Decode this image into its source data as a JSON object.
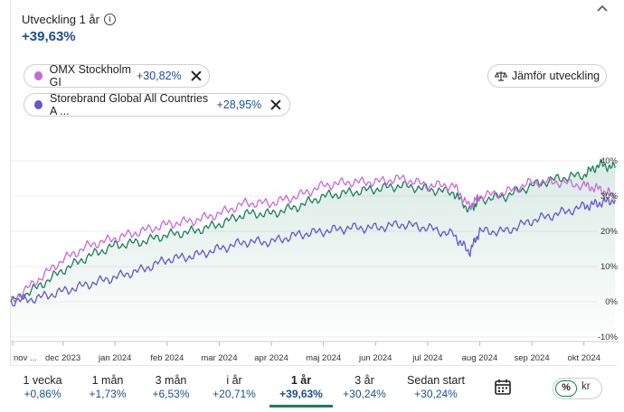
{
  "header": {
    "title": "Utveckling 1 år",
    "change": "+39,63%"
  },
  "chips": [
    {
      "name": "OMX Stockholm GI",
      "value": "+30,82%",
      "color": "#cc66dd"
    },
    {
      "name": "Storebrand Global All Countries A ...",
      "value": "+28,95%",
      "color": "#6655cc"
    }
  ],
  "compare_button": "Jämför utveckling",
  "chart_data": {
    "type": "line",
    "x_labels": [
      "nov ...",
      "dec 2023",
      "jan 2024",
      "feb 2024",
      "mar 2024",
      "apr 2024",
      "maj 2024",
      "jun 2024",
      "jul 2024",
      "aug 2024",
      "sep 2024",
      "okt 2024"
    ],
    "y_ticks": [
      "40%",
      "30%",
      "20%",
      "10%",
      "0%",
      "-10%"
    ],
    "ylim": [
      -10,
      40
    ],
    "grid": true,
    "series": [
      {
        "color": "#1a7f5a",
        "fill": true,
        "x": [
          0,
          0.5,
          1,
          1.5,
          2,
          2.5,
          3,
          3.5,
          4,
          4.5,
          5,
          5.5,
          6,
          6.5,
          7,
          7.5,
          8,
          8.5,
          8.8,
          9,
          9.5,
          10,
          10.5,
          11,
          11.3,
          11.6
        ],
        "y": [
          0,
          4,
          9,
          13,
          16,
          17,
          19,
          20,
          22,
          25,
          25,
          27,
          30,
          31,
          32,
          33,
          32,
          31,
          26,
          29,
          30,
          33,
          35,
          36,
          39,
          38
        ]
      },
      {
        "color": "#cc66dd",
        "fill": false,
        "x": [
          0,
          0.5,
          1,
          1.5,
          2,
          2.5,
          3,
          3.5,
          4,
          4.5,
          5,
          5.5,
          6,
          6.5,
          7,
          7.5,
          8,
          8.5,
          8.8,
          9,
          9.5,
          10,
          10.5,
          11,
          11.3,
          11.6
        ],
        "y": [
          0,
          6,
          12,
          16,
          18,
          20,
          22,
          23,
          25,
          28,
          28,
          30,
          33,
          34,
          34,
          35,
          33,
          33,
          27,
          30,
          31,
          34,
          34,
          33,
          32,
          30
        ]
      },
      {
        "color": "#6655cc",
        "fill": false,
        "x": [
          0,
          0.5,
          1,
          1.5,
          2,
          2.5,
          3,
          3.5,
          4,
          4.5,
          5,
          5.5,
          6,
          6.5,
          7,
          7.5,
          8,
          8.5,
          8.8,
          9,
          9.5,
          10,
          10.5,
          11,
          11.3,
          11.6
        ],
        "y": [
          0,
          1,
          3,
          5,
          7,
          9,
          12,
          13,
          15,
          17,
          17,
          19,
          20,
          21,
          21,
          22,
          21,
          19,
          14,
          20,
          20,
          23,
          25,
          27,
          28,
          29
        ]
      }
    ]
  },
  "periods": [
    {
      "label": "1 vecka",
      "pct": "+0,86%"
    },
    {
      "label": "1 mån",
      "pct": "+1,73%"
    },
    {
      "label": "3 mån",
      "pct": "+6,53%"
    },
    {
      "label": "i år",
      "pct": "+20,71%"
    },
    {
      "label": "1 år",
      "pct": "+39,63%",
      "active": true
    },
    {
      "label": "3 år",
      "pct": "+30,24%"
    },
    {
      "label": "Sedan start",
      "pct": "+30,24%"
    }
  ],
  "toggle": {
    "pct": "%",
    "kr": "kr"
  }
}
